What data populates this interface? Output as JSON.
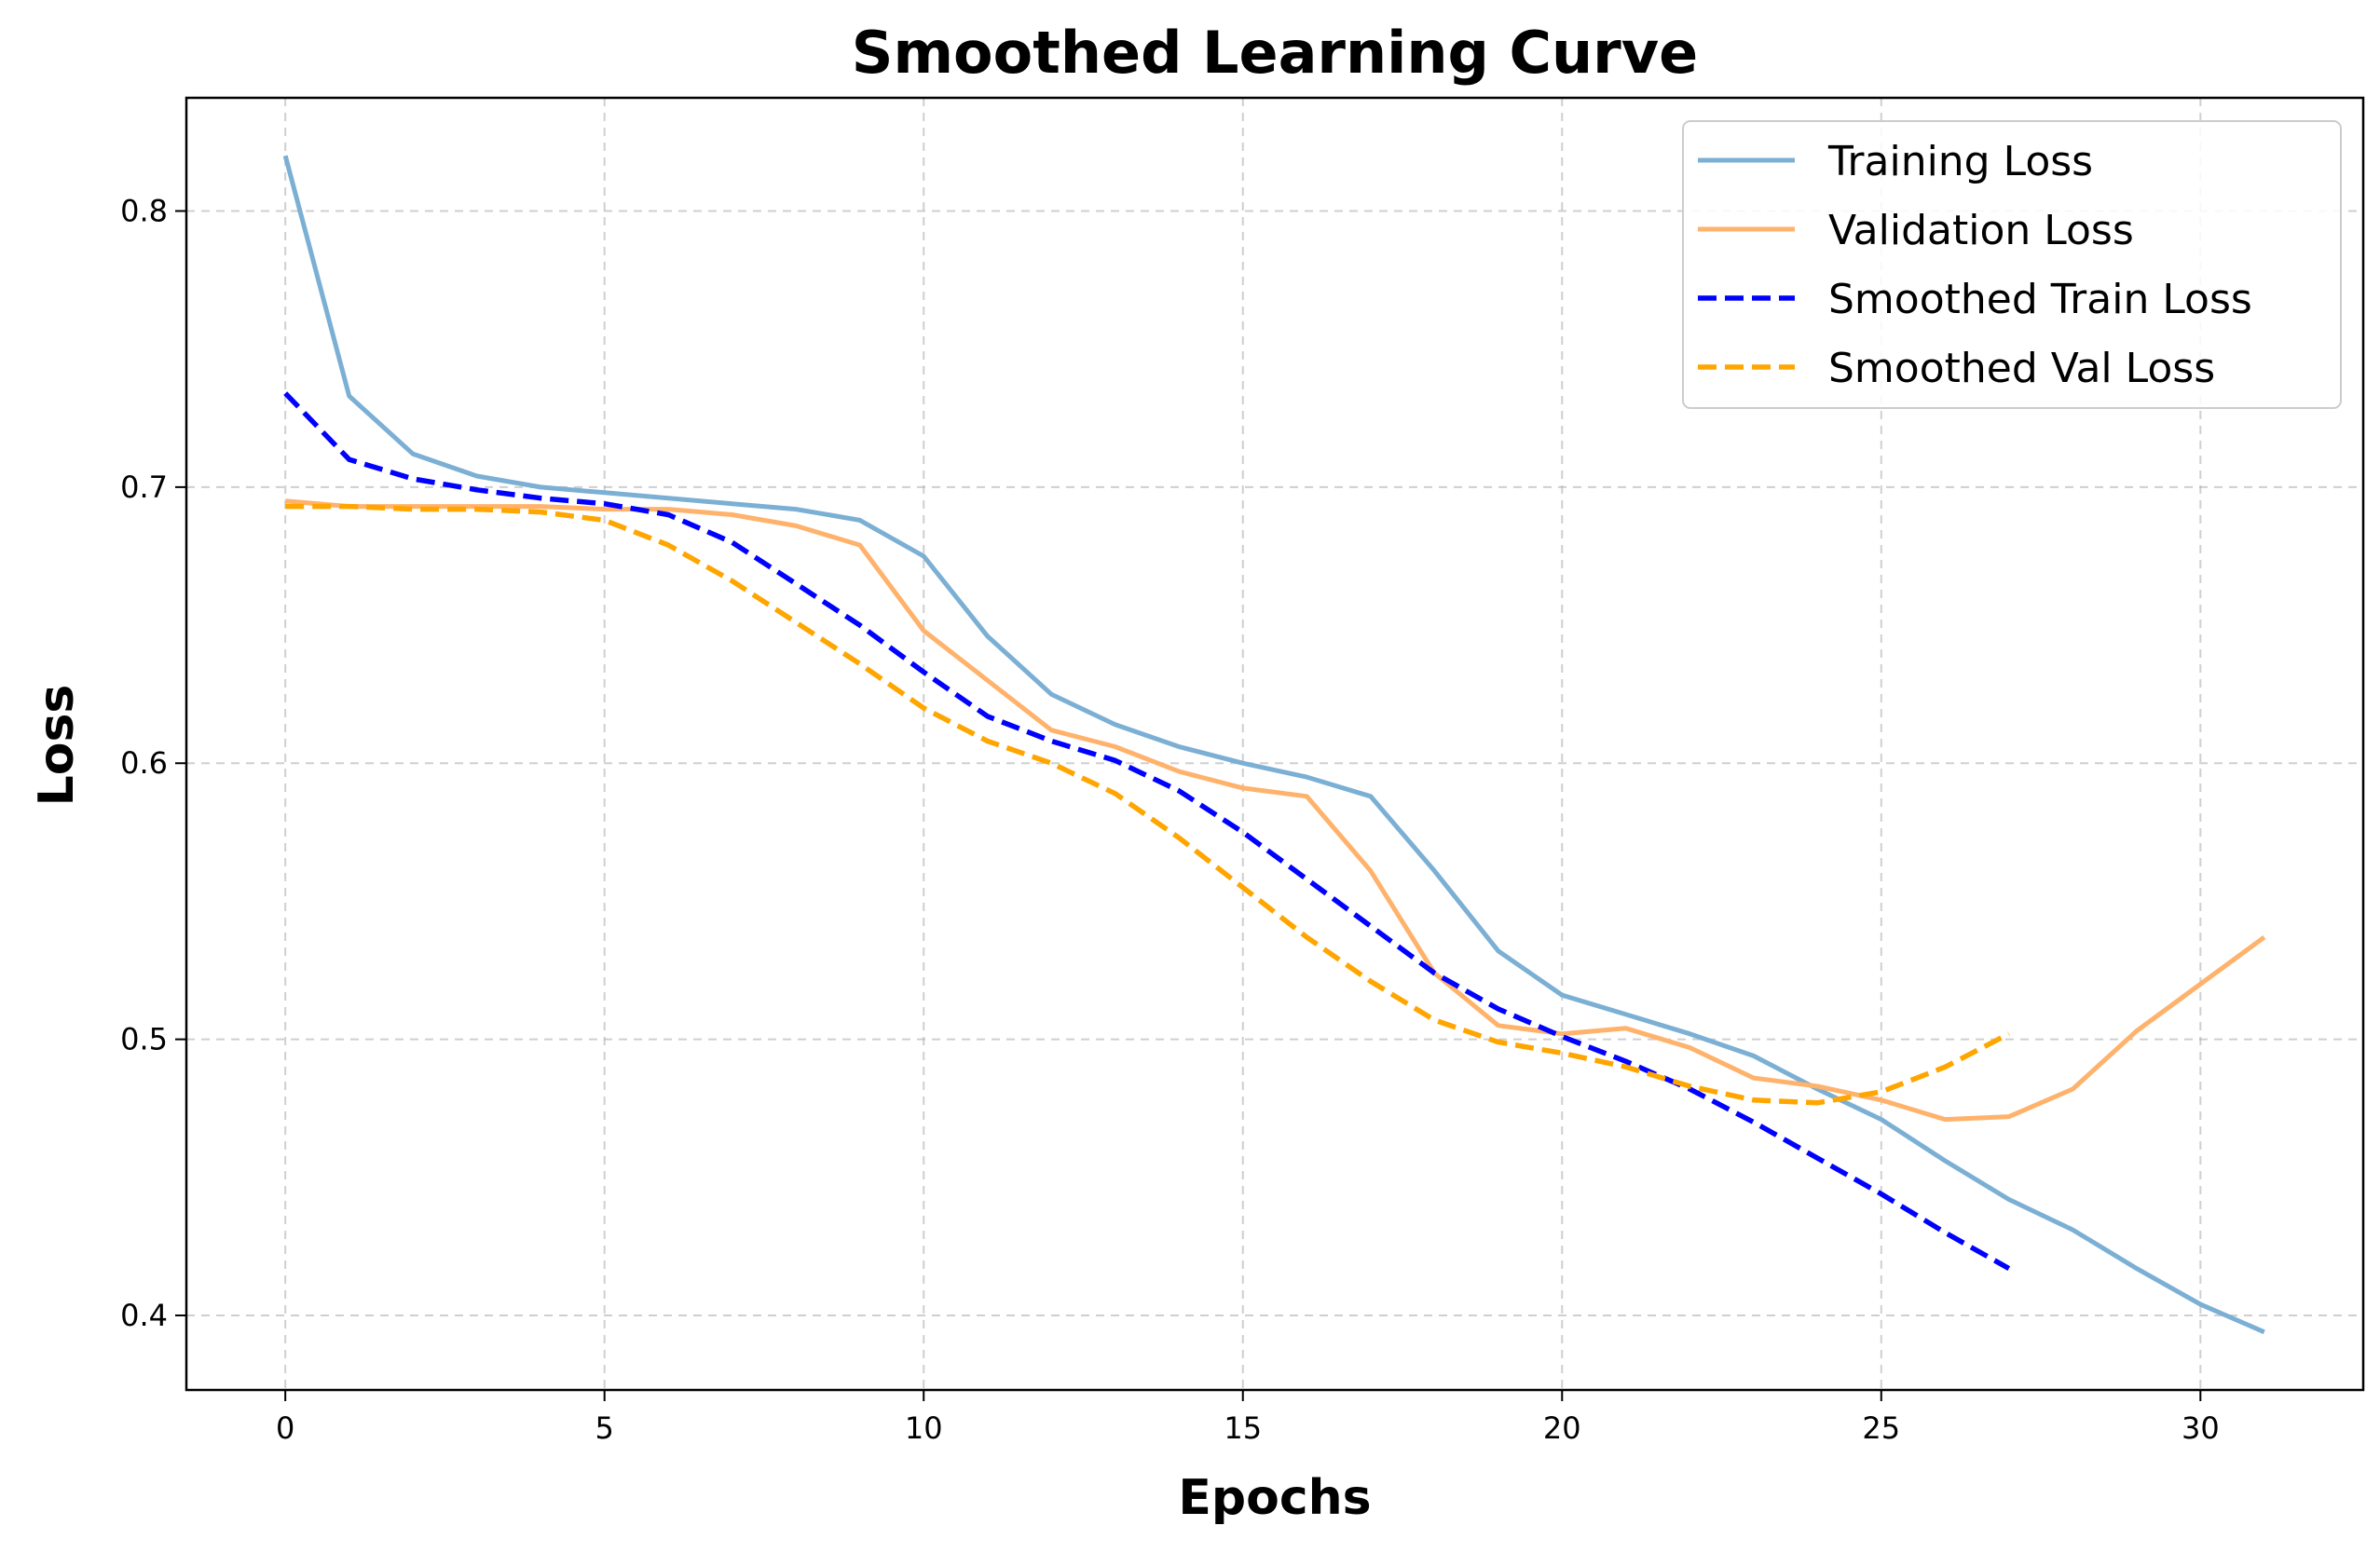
{
  "chart_data": {
    "type": "line",
    "title": "Smoothed Learning Curve",
    "xlabel": "Epochs",
    "ylabel": "Loss",
    "xlim": [
      -1.55,
      32.55
    ],
    "ylim": [
      0.373,
      0.841
    ],
    "xticks": [
      0,
      5,
      10,
      15,
      20,
      25,
      30
    ],
    "yticks": [
      0.4,
      0.5,
      0.6,
      0.7,
      0.8
    ],
    "grid": true,
    "legend_position": "top-right",
    "series": [
      {
        "name": "Training Loss",
        "color": "#7bafd4",
        "style": "solid",
        "x": [
          0,
          1,
          2,
          3,
          4,
          5,
          6,
          7,
          8,
          9,
          10,
          11,
          12,
          13,
          14,
          15,
          16,
          17,
          18,
          19,
          20,
          21,
          22,
          23,
          24,
          25,
          26,
          27,
          28,
          29,
          30,
          31
        ],
        "values": [
          0.82,
          0.733,
          0.712,
          0.704,
          0.7,
          0.698,
          0.696,
          0.694,
          0.692,
          0.688,
          0.675,
          0.646,
          0.625,
          0.614,
          0.606,
          0.6,
          0.595,
          0.588,
          0.561,
          0.532,
          0.516,
          0.509,
          0.502,
          0.494,
          0.482,
          0.471,
          0.456,
          0.442,
          0.431,
          0.417,
          0.404,
          0.394
        ]
      },
      {
        "name": "Validation Loss",
        "color": "#ffb26b",
        "style": "solid",
        "x": [
          0,
          1,
          2,
          3,
          4,
          5,
          6,
          7,
          8,
          9,
          10,
          11,
          12,
          13,
          14,
          15,
          16,
          17,
          18,
          19,
          20,
          21,
          22,
          23,
          24,
          25,
          26,
          27,
          28,
          29,
          30,
          31
        ],
        "values": [
          0.695,
          0.693,
          0.693,
          0.693,
          0.693,
          0.692,
          0.692,
          0.69,
          0.686,
          0.679,
          0.648,
          0.63,
          0.612,
          0.606,
          0.597,
          0.591,
          0.588,
          0.561,
          0.524,
          0.505,
          0.502,
          0.504,
          0.497,
          0.486,
          0.483,
          0.478,
          0.471,
          0.472,
          0.482,
          0.503,
          0.52,
          0.537
        ]
      },
      {
        "name": "Smoothed Train Loss",
        "color": "#0000ff",
        "style": "dashed",
        "x": [
          0,
          1,
          2,
          3,
          4,
          5,
          6,
          7,
          8,
          9,
          10,
          11,
          12,
          13,
          14,
          15,
          16,
          17,
          18,
          19,
          20,
          21,
          22,
          23,
          24,
          25,
          26,
          27
        ],
        "values": [
          0.734,
          0.71,
          0.703,
          0.699,
          0.696,
          0.694,
          0.69,
          0.68,
          0.665,
          0.65,
          0.633,
          0.617,
          0.608,
          0.601,
          0.59,
          0.575,
          0.558,
          0.541,
          0.524,
          0.511,
          0.501,
          0.492,
          0.482,
          0.47,
          0.457,
          0.444,
          0.43,
          0.417
        ]
      },
      {
        "name": "Smoothed Val Loss",
        "color": "#ffa500",
        "style": "dashed",
        "x": [
          0,
          1,
          2,
          3,
          4,
          5,
          6,
          7,
          8,
          9,
          10,
          11,
          12,
          13,
          14,
          15,
          16,
          17,
          18,
          19,
          20,
          21,
          22,
          23,
          24,
          25,
          26,
          27
        ],
        "values": [
          0.693,
          0.693,
          0.692,
          0.692,
          0.691,
          0.688,
          0.679,
          0.666,
          0.651,
          0.636,
          0.62,
          0.608,
          0.6,
          0.589,
          0.573,
          0.555,
          0.537,
          0.521,
          0.507,
          0.499,
          0.495,
          0.49,
          0.483,
          0.478,
          0.477,
          0.481,
          0.49,
          0.502
        ]
      }
    ]
  }
}
